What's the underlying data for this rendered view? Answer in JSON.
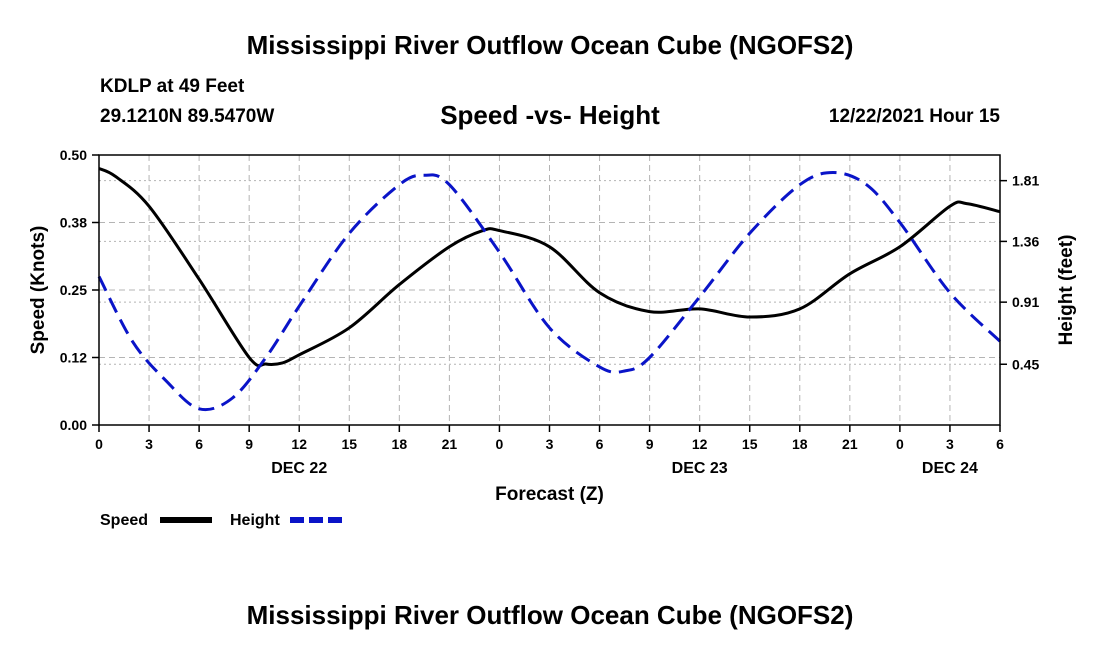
{
  "header": {
    "title": "Mississippi River Outflow Ocean Cube (NGOFS2)",
    "station": "KDLP at 49 Feet",
    "coords": "29.1210N  89.5470W",
    "subtitle": "Speed -vs- Height",
    "datetime": "12/22/2021 Hour 15"
  },
  "footer": {
    "title": "Mississippi River Outflow Ocean Cube (NGOFS2)"
  },
  "colors": {
    "speed": "#000000",
    "height": "#0a14c8",
    "grid": "#b4b4b4"
  },
  "chart_data": {
    "type": "line",
    "title": "Speed -vs- Height",
    "xlabel": "Forecast (Z)",
    "ylabel": "Speed (Knots)",
    "ylabel_right": "Height (feet)",
    "x_range": [
      0,
      54
    ],
    "ylim": [
      0,
      0.5
    ],
    "ylim_right": [
      0.0,
      2.0
    ],
    "x_tick_values": [
      0,
      3,
      6,
      9,
      12,
      15,
      18,
      21,
      24,
      27,
      30,
      33,
      36,
      39,
      42,
      45,
      48,
      51,
      54
    ],
    "x_tick_labels": [
      "0",
      "3",
      "6",
      "9",
      "12",
      "15",
      "18",
      "21",
      "0",
      "3",
      "6",
      "9",
      "12",
      "15",
      "18",
      "21",
      "0",
      "3",
      "6"
    ],
    "date_labels": [
      {
        "x": 12,
        "label": "DEC 22"
      },
      {
        "x": 36,
        "label": "DEC 23"
      },
      {
        "x": 51,
        "label": "DEC 24"
      }
    ],
    "y_ticks": [
      "0.00",
      "0.12",
      "0.25",
      "0.38",
      "0.50"
    ],
    "y_tick_values": [
      0,
      0.125,
      0.25,
      0.375,
      0.5
    ],
    "y_ticks_right": [
      "0.45",
      "0.91",
      "1.36",
      "1.81"
    ],
    "y_tick_values_right": [
      0.45,
      0.91,
      1.36,
      1.81
    ],
    "legend": [
      {
        "label": "Speed"
      },
      {
        "label": "Height"
      }
    ],
    "series": [
      {
        "name": "Speed",
        "axis": "left",
        "style": "solid",
        "x": [
          0,
          1,
          3,
          6,
          9,
          10,
          11,
          12,
          15,
          18,
          21,
          23,
          24,
          27,
          30,
          33,
          36,
          39,
          42,
          45,
          48,
          51,
          52,
          54
        ],
        "values": [
          0.475,
          0.46,
          0.405,
          0.27,
          0.125,
          0.113,
          0.115,
          0.13,
          0.18,
          0.26,
          0.33,
          0.36,
          0.36,
          0.33,
          0.245,
          0.21,
          0.215,
          0.2,
          0.215,
          0.28,
          0.33,
          0.405,
          0.41,
          0.395
        ]
      },
      {
        "name": "Height",
        "axis": "right",
        "style": "dashed",
        "x": [
          0,
          2,
          4,
          6,
          8,
          10,
          12,
          15,
          18,
          19.5,
          21,
          24,
          27,
          30,
          31.5,
          33,
          36,
          39,
          42,
          44,
          46,
          48,
          51,
          54
        ],
        "values": [
          1.1,
          0.62,
          0.33,
          0.12,
          0.2,
          0.5,
          0.88,
          1.42,
          1.78,
          1.85,
          1.78,
          1.28,
          0.72,
          0.43,
          0.4,
          0.5,
          0.95,
          1.42,
          1.78,
          1.87,
          1.78,
          1.5,
          0.98,
          0.62
        ]
      }
    ]
  }
}
